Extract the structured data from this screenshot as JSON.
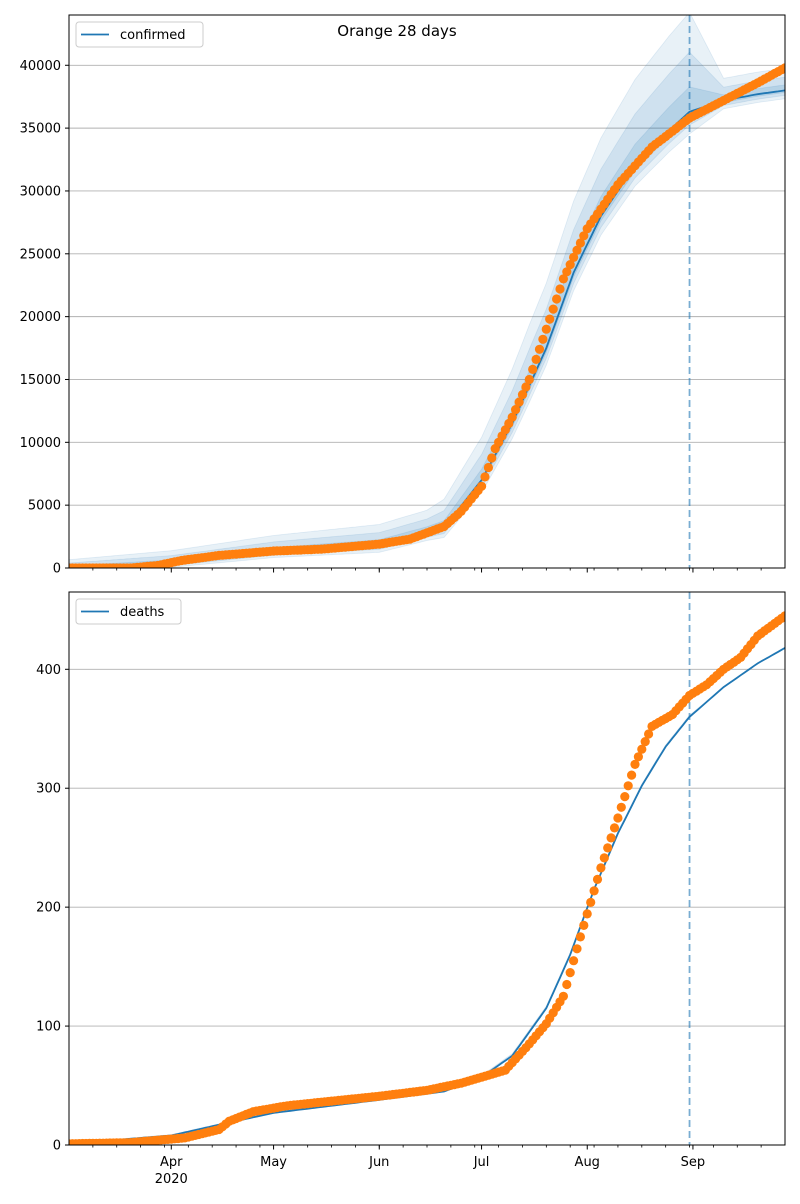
{
  "figure": {
    "title": "Orange 28 days"
  },
  "chart_data": [
    {
      "type": "line",
      "legend": "top-left",
      "grid": "y",
      "series": [
        {
          "name": "confirmed",
          "kind": "line",
          "color": "#1f77b4"
        },
        {
          "kind": "scatter",
          "color": "#ff7f0e"
        }
      ],
      "xlim": [
        "2020-03-02",
        "2020-09-28"
      ],
      "ylim": [
        0,
        44000
      ],
      "yticks": [
        0,
        5000,
        10000,
        15000,
        20000,
        25000,
        30000,
        35000,
        40000
      ],
      "ytick_labels": [
        "0",
        "5000",
        "10000",
        "15000",
        "20000",
        "25000",
        "30000",
        "35000",
        "40000"
      ],
      "forecast_start": "2020-08-31",
      "observed_anchors": [
        [
          "2020-03-02",
          0
        ],
        [
          "2020-03-20",
          0
        ],
        [
          "2020-03-28",
          200
        ],
        [
          "2020-04-04",
          600
        ],
        [
          "2020-04-15",
          1000
        ],
        [
          "2020-05-01",
          1350
        ],
        [
          "2020-05-15",
          1500
        ],
        [
          "2020-06-01",
          1900
        ],
        [
          "2020-06-10",
          2300
        ],
        [
          "2020-06-20",
          3300
        ],
        [
          "2020-06-25",
          4500
        ],
        [
          "2020-07-01",
          6500
        ],
        [
          "2020-07-05",
          9500
        ],
        [
          "2020-07-10",
          12000
        ],
        [
          "2020-07-15",
          15000
        ],
        [
          "2020-07-20",
          19000
        ],
        [
          "2020-07-25",
          23000
        ],
        [
          "2020-08-01",
          27000
        ],
        [
          "2020-08-10",
          30500
        ],
        [
          "2020-08-20",
          33500
        ],
        [
          "2020-08-31",
          35800
        ],
        [
          "2020-09-10",
          37200
        ],
        [
          "2020-09-20",
          38600
        ],
        [
          "2020-09-28",
          39800
        ]
      ],
      "model_anchors": [
        [
          "2020-03-02",
          0
        ],
        [
          "2020-04-01",
          400
        ],
        [
          "2020-05-01",
          1300
        ],
        [
          "2020-06-01",
          1850
        ],
        [
          "2020-06-20",
          3200
        ],
        [
          "2020-07-01",
          7000
        ],
        [
          "2020-07-10",
          11500
        ],
        [
          "2020-07-20",
          17500
        ],
        [
          "2020-07-28",
          23500
        ],
        [
          "2020-08-05",
          28000
        ],
        [
          "2020-08-15",
          32000
        ],
        [
          "2020-08-25",
          34800
        ],
        [
          "2020-08-31",
          36300
        ],
        [
          "2020-09-10",
          37200
        ],
        [
          "2020-09-20",
          37700
        ],
        [
          "2020-09-28",
          38000
        ]
      ],
      "band_widths": [
        [
          "2020-03-02",
          0.5,
          1.5
        ],
        [
          "2020-06-15",
          1.5,
          4.0
        ],
        [
          "2020-07-15",
          3.0,
          11.0
        ],
        [
          "2020-08-31",
          4.0,
          18.0
        ],
        [
          "2020-09-10",
          1.5,
          4.0
        ],
        [
          "2020-09-28",
          1.5,
          4.0
        ]
      ]
    },
    {
      "type": "line",
      "legend": "top-left",
      "grid": "y",
      "series": [
        {
          "name": "deaths",
          "kind": "line",
          "color": "#1f77b4"
        },
        {
          "kind": "scatter",
          "color": "#ff7f0e"
        }
      ],
      "xlim": [
        "2020-03-02",
        "2020-09-28"
      ],
      "ylim": [
        0,
        465
      ],
      "yticks": [
        0,
        100,
        200,
        300,
        400
      ],
      "ytick_labels": [
        "0",
        "100",
        "200",
        "300",
        "400"
      ],
      "xticks": [
        "2020-04-01",
        "2020-05-01",
        "2020-06-01",
        "2020-07-01",
        "2020-08-01",
        "2020-09-01"
      ],
      "xtick_labels": [
        "Apr\n2020",
        "May",
        "Jun",
        "Jul",
        "Aug",
        "Sep"
      ],
      "forecast_start": "2020-08-31",
      "observed_anchors": [
        [
          "2020-03-02",
          1
        ],
        [
          "2020-03-20",
          2
        ],
        [
          "2020-03-28",
          4
        ],
        [
          "2020-04-05",
          6
        ],
        [
          "2020-04-15",
          13
        ],
        [
          "2020-04-18",
          20
        ],
        [
          "2020-04-25",
          28
        ],
        [
          "2020-05-05",
          33
        ],
        [
          "2020-05-15",
          36
        ],
        [
          "2020-06-01",
          41
        ],
        [
          "2020-06-15",
          46
        ],
        [
          "2020-06-25",
          52
        ],
        [
          "2020-07-01",
          57
        ],
        [
          "2020-07-08",
          63
        ],
        [
          "2020-07-15",
          85
        ],
        [
          "2020-07-20",
          102
        ],
        [
          "2020-07-25",
          125
        ],
        [
          "2020-07-30",
          175
        ],
        [
          "2020-08-05",
          233
        ],
        [
          "2020-08-10",
          275
        ],
        [
          "2020-08-15",
          320
        ],
        [
          "2020-08-20",
          352
        ],
        [
          "2020-08-26",
          362
        ],
        [
          "2020-08-31",
          378
        ],
        [
          "2020-09-05",
          387
        ],
        [
          "2020-09-10",
          400
        ],
        [
          "2020-09-15",
          410
        ],
        [
          "2020-09-20",
          428
        ],
        [
          "2020-09-28",
          445
        ]
      ],
      "model_anchors": [
        [
          "2020-03-02",
          1
        ],
        [
          "2020-04-01",
          8
        ],
        [
          "2020-04-15",
          17
        ],
        [
          "2020-05-01",
          27
        ],
        [
          "2020-06-01",
          38
        ],
        [
          "2020-06-20",
          45
        ],
        [
          "2020-07-01",
          57
        ],
        [
          "2020-07-10",
          75
        ],
        [
          "2020-07-20",
          115
        ],
        [
          "2020-07-27",
          160
        ],
        [
          "2020-08-03",
          215
        ],
        [
          "2020-08-10",
          262
        ],
        [
          "2020-08-17",
          302
        ],
        [
          "2020-08-24",
          335
        ],
        [
          "2020-08-31",
          360
        ],
        [
          "2020-09-10",
          385
        ],
        [
          "2020-09-20",
          405
        ],
        [
          "2020-09-28",
          418
        ]
      ],
      "band_widths": [
        [
          "2020-03-02",
          0.05,
          0.12
        ],
        [
          "2020-06-15",
          0.1,
          0.25
        ],
        [
          "2020-07-15",
          0.12,
          0.4
        ],
        [
          "2020-08-31",
          0.08,
          0.3
        ],
        [
          "2020-09-10",
          0.03,
          0.06
        ],
        [
          "2020-09-28",
          0.025,
          0.05
        ]
      ]
    }
  ]
}
